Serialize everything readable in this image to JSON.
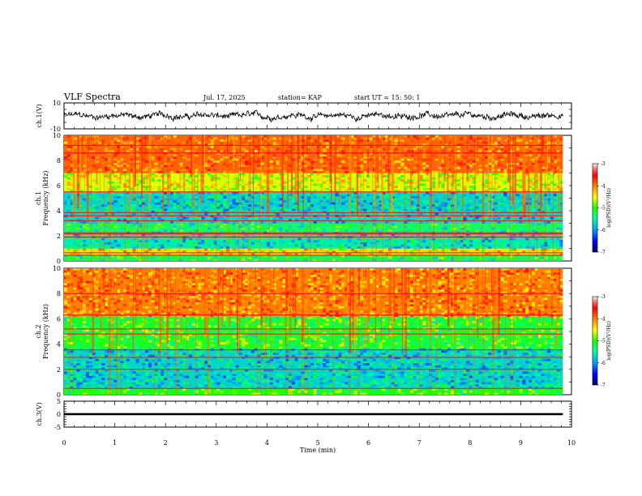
{
  "header": {
    "title": "VLF Spectra",
    "date": "Jul. 17, 2025",
    "station": "station= KAP",
    "start": "start  UT =   15: 50: 1"
  },
  "colors": {
    "waveform": "#000000",
    "colormap": [
      "#000080",
      "#0000ff",
      "#00bfff",
      "#00ff80",
      "#40ff00",
      "#ffff00",
      "#ff8000",
      "#ff0000",
      "#ff6666",
      "#ffffff"
    ]
  },
  "chart_data": [
    {
      "type": "line",
      "id": "ch1-waveform",
      "ylabel": "ch.1(V)",
      "ylim": [
        -10,
        10
      ],
      "y_ticks": [
        "10",
        "-10"
      ],
      "xlim": [
        0,
        10
      ],
      "description_values": "noisy waveform between about -5 and +5 V",
      "y_range_observed": [
        -5,
        5
      ]
    },
    {
      "type": "heatmap",
      "id": "ch1-spectrogram",
      "ylabel": "ch.1\nFrequency (kHz)",
      "ylabel_top": "ch.1",
      "ylabel_bottom": "Frequency (kHz)",
      "ylim": [
        0,
        10
      ],
      "y_ticks": [
        "0",
        "2",
        "4",
        "6",
        "8",
        "10"
      ],
      "xlim": [
        0,
        10
      ],
      "data_end_min": 9.83,
      "colorbar": {
        "min": -7,
        "max": -3,
        "ticks": [
          "-3",
          "-4",
          "-5",
          "-6",
          "-7"
        ],
        "label": "log(PSD)(V²/Hz)"
      },
      "bands": [
        {
          "from_khz": 0.0,
          "to_khz": 0.5,
          "level": -5.2
        },
        {
          "from_khz": 0.5,
          "to_khz": 1.0,
          "level": -4.4
        },
        {
          "from_khz": 1.0,
          "to_khz": 2.3,
          "level": -5.6
        },
        {
          "from_khz": 2.3,
          "to_khz": 3.0,
          "level": -5.3
        },
        {
          "from_khz": 3.0,
          "to_khz": 5.5,
          "level": -5.7
        },
        {
          "from_khz": 5.5,
          "to_khz": 7.0,
          "level": -4.6
        },
        {
          "from_khz": 7.0,
          "to_khz": 10.0,
          "level": -3.9
        }
      ],
      "lines_khz": [
        0.45,
        0.65,
        1.9,
        2.15,
        2.25,
        3.2,
        3.6,
        3.85,
        5.5,
        8.6,
        9.2
      ]
    },
    {
      "type": "heatmap",
      "id": "ch2-spectrogram",
      "ylabel": "ch.2\nFrequency (kHz)",
      "ylabel_top": "ch.2",
      "ylabel_bottom": "Frequency (kHz)",
      "ylim": [
        0,
        10
      ],
      "y_ticks": [
        "0",
        "2",
        "4",
        "6",
        "8",
        "10"
      ],
      "xlim": [
        0,
        10
      ],
      "data_end_min": 9.83,
      "colorbar": {
        "min": -7,
        "max": -3,
        "ticks": [
          "-3",
          "-4",
          "-5",
          "-6",
          "-7"
        ],
        "label": "log(PSD)(V²/Hz)"
      },
      "bands": [
        {
          "from_khz": 0.0,
          "to_khz": 0.5,
          "level": -5.0
        },
        {
          "from_khz": 0.5,
          "to_khz": 3.6,
          "level": -5.7
        },
        {
          "from_khz": 3.6,
          "to_khz": 6.2,
          "level": -5.1
        },
        {
          "from_khz": 6.2,
          "to_khz": 10.0,
          "level": -4.0
        }
      ],
      "lines_khz": [
        0.5,
        2.0,
        2.95,
        3.55,
        4.8,
        5.2,
        6.3,
        8.0
      ]
    },
    {
      "type": "line",
      "id": "ch3-waveform",
      "ylabel": "ch.3(V)",
      "ylim": [
        -5,
        5
      ],
      "y_ticks": [
        "5",
        "0",
        "-5"
      ],
      "xlim": [
        0,
        10
      ],
      "x_ticks": [
        "0",
        "1",
        "2",
        "3",
        "4",
        "5",
        "6",
        "7",
        "8",
        "9",
        "10"
      ],
      "xlabel": "Time (min)",
      "y_range_observed": [
        -0.4,
        0.4
      ]
    }
  ]
}
